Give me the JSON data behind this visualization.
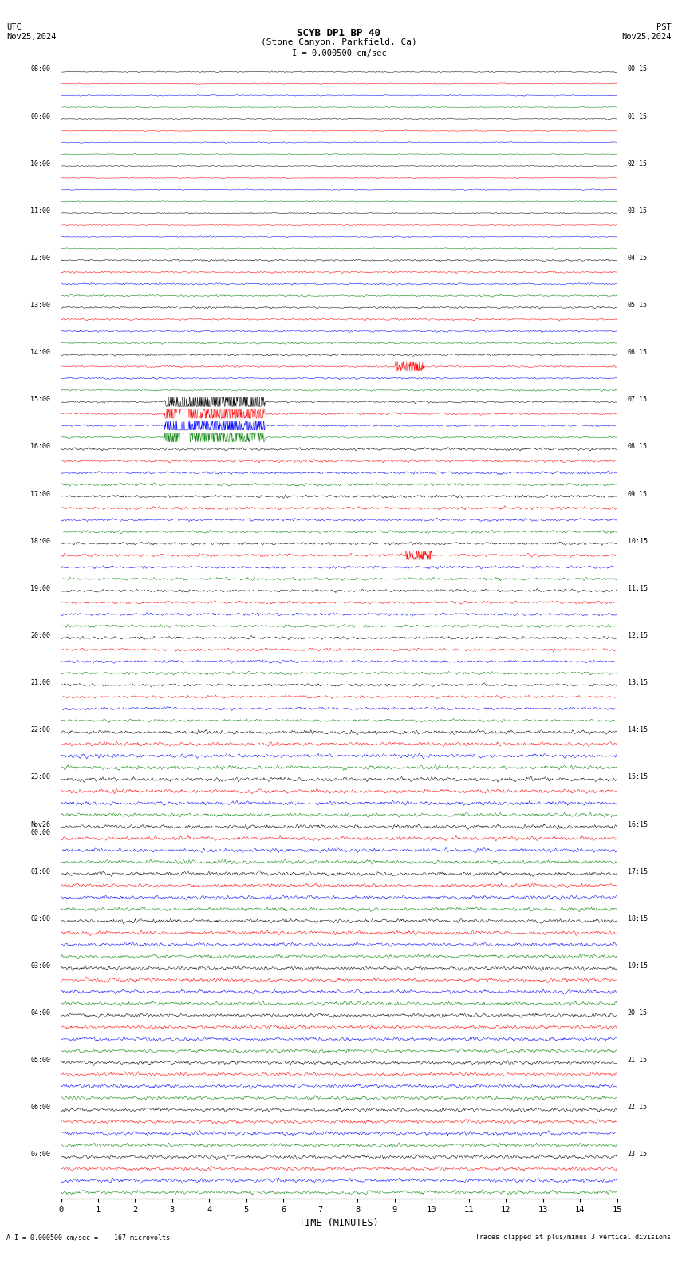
{
  "title_line1": "SCYB DP1 BP 40",
  "title_line2": "(Stone Canyon, Parkfield, Ca)",
  "scale_label": "I = 0.000500 cm/sec",
  "utc_label": "UTC",
  "pst_label": "PST",
  "date_left": "Nov25,2024",
  "date_right": "Nov25,2024",
  "xlabel": "TIME (MINUTES)",
  "footer_left": "A I = 0.000500 cm/sec =    167 microvolts",
  "footer_right": "Traces clipped at plus/minus 3 vertical divisions",
  "bg_color": "#ffffff",
  "colors": [
    "black",
    "red",
    "blue",
    "green"
  ],
  "noise_seed": 42,
  "fig_width": 8.5,
  "fig_height": 15.84,
  "dpi": 100,
  "xticks": [
    0,
    1,
    2,
    3,
    4,
    5,
    6,
    7,
    8,
    9,
    10,
    11,
    12,
    13,
    14,
    15
  ],
  "left_label_times": [
    "08:00",
    "09:00",
    "10:00",
    "11:00",
    "12:00",
    "13:00",
    "14:00",
    "15:00",
    "16:00",
    "17:00",
    "18:00",
    "19:00",
    "20:00",
    "21:00",
    "22:00",
    "23:00",
    "Nov26\n00:00",
    "01:00",
    "02:00",
    "03:00",
    "04:00",
    "05:00",
    "06:00",
    "07:00"
  ],
  "right_label_times": [
    "00:15",
    "01:15",
    "02:15",
    "03:15",
    "04:15",
    "05:15",
    "06:15",
    "07:15",
    "08:15",
    "09:15",
    "10:15",
    "11:15",
    "12:15",
    "13:15",
    "14:15",
    "15:15",
    "16:15",
    "17:15",
    "18:15",
    "19:15",
    "20:15",
    "21:15",
    "22:15",
    "23:15"
  ]
}
